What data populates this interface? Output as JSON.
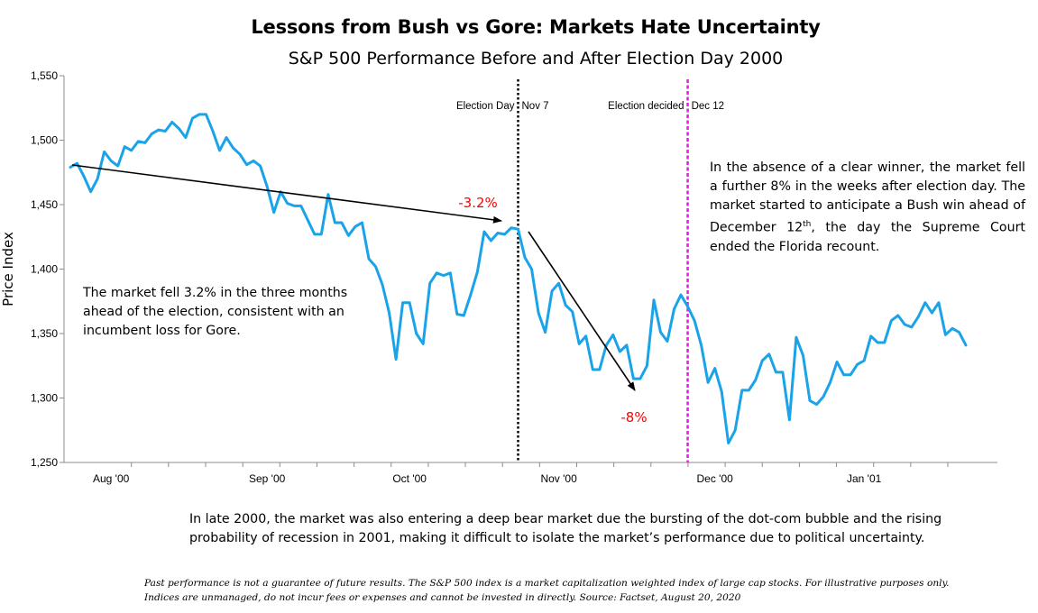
{
  "chart_data": {
    "type": "line",
    "title": "Lessons from Bush vs Gore: Markets Hate Uncertainty",
    "subtitle": "S&P 500 Performance Before and After Election Day 2000",
    "ylabel": "Price Index",
    "xlabel": "",
    "ylim": [
      1250,
      1550
    ],
    "y_ticks": [
      1250,
      1300,
      1350,
      1400,
      1450,
      1500,
      1550
    ],
    "y_tick_labels": [
      "1,250",
      "1,300",
      "1,350",
      "1,400",
      "1,450",
      "1,500",
      "1,550"
    ],
    "x_tick_labels": [
      "Aug '00",
      "Sep '00",
      "Oct '00",
      "Nov '00",
      "Dec '00",
      "Jan '01"
    ],
    "grid": false,
    "line_color": "#1aa3e8",
    "series": [
      {
        "values": [
          1479,
          1482,
          1472,
          1460,
          1470,
          1491,
          1484,
          1480,
          1495,
          1492,
          1499,
          1498,
          1505,
          1508,
          1507,
          1514,
          1509,
          1502,
          1517,
          1520,
          1520,
          1507,
          1492,
          1502,
          1494,
          1489,
          1481,
          1484,
          1480,
          1464,
          1444,
          1460,
          1451,
          1449,
          1449,
          1438,
          1427,
          1427,
          1458,
          1436,
          1436,
          1426,
          1433,
          1436,
          1408,
          1402,
          1388,
          1366,
          1330,
          1374,
          1374,
          1350,
          1342,
          1389,
          1397,
          1395,
          1397,
          1365,
          1364,
          1380,
          1398,
          1429,
          1422,
          1428,
          1427,
          1432,
          1431,
          1409,
          1400,
          1366,
          1351,
          1383,
          1389,
          1372,
          1367,
          1342,
          1348,
          1322,
          1322,
          1341,
          1349,
          1336,
          1341,
          1315,
          1315,
          1325,
          1376,
          1351,
          1344,
          1369,
          1380,
          1371,
          1360,
          1341,
          1312,
          1323,
          1305,
          1265,
          1275,
          1306,
          1306,
          1314,
          1329,
          1334,
          1320,
          1320,
          1283,
          1347,
          1333,
          1298,
          1295,
          1301,
          1312,
          1328,
          1318,
          1318,
          1326,
          1329,
          1348,
          1343,
          1343,
          1360,
          1364,
          1357,
          1355,
          1363,
          1374,
          1366,
          1374,
          1349,
          1354,
          1351,
          1341
        ]
      }
    ],
    "vlines": [
      {
        "label_left": "Election Day",
        "label_right": "Nov 7",
        "index": 66,
        "color": "#000000",
        "style": "dotted"
      },
      {
        "label_left": "Election decided",
        "label_right": "Dec 12",
        "index": 91,
        "color": "#e619e6",
        "style": "dashed"
      }
    ],
    "annotations": [
      {
        "text": "-3.2%",
        "color": "#ff0000"
      },
      {
        "text": "-8%",
        "color": "#ff0000"
      }
    ]
  },
  "notes": {
    "left": "The market fell 3.2% in the three months ahead of the election, consistent with an incumbent loss for Gore.",
    "right_before": "In the absence of a clear winner, the market fell a further 8% in the weeks after election day. The market started to anticipate a Bush win ahead of  December 12",
    "right_sup": "th",
    "right_after": ", the day the Supreme Court ended the Florida recount.",
    "bottom": "In late 2000, the market was also entering a deep bear market due the bursting of the dot-com bubble and the rising probability of recession in 2001, making it difficult to isolate the market’s performance due to political uncertainty.",
    "disclaimer": "Past performance is not a guarantee of future results. The S&P 500 index is a market capitalization weighted index of large cap stocks. For illustrative purposes only.  Indices are unmanaged, do not incur fees or expenses and cannot be invested in directly. Source: Factset, August 20, 2020"
  }
}
